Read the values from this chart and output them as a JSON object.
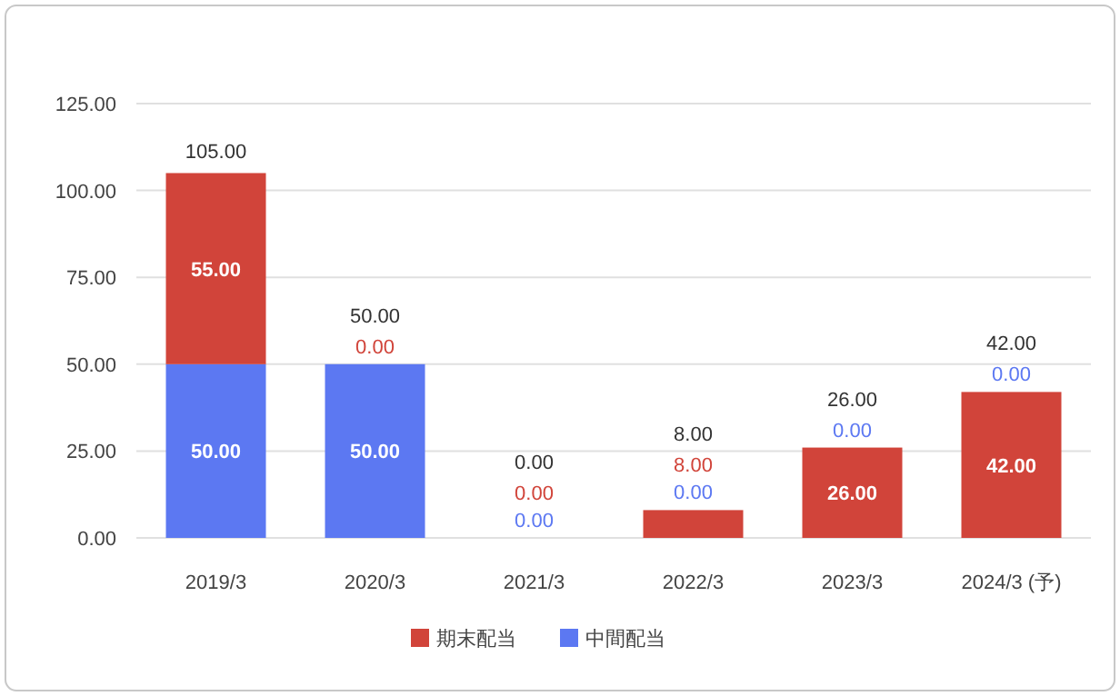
{
  "chart_data": {
    "type": "bar",
    "stacked": true,
    "categories": [
      "2019/3",
      "2020/3",
      "2021/3",
      "2022/3",
      "2023/3",
      "2024/3 (予)"
    ],
    "series": [
      {
        "name": "中間配当",
        "color": "#5c78f2",
        "values": [
          50,
          50,
          0,
          0,
          0,
          0
        ],
        "value_labels": [
          "50.00",
          "50.00",
          "0.00",
          "0.00",
          "0.00",
          "0.00"
        ]
      },
      {
        "name": "期末配当",
        "color": "#d1443a",
        "values": [
          55,
          0,
          0,
          8,
          26,
          42
        ],
        "value_labels": [
          "55.00",
          "0.00",
          "0.00",
          "8.00",
          "26.00",
          "42.00"
        ]
      }
    ],
    "totals": [
      "105.00",
      "50.00",
      "0.00",
      "8.00",
      "26.00",
      "42.00"
    ],
    "ylim": [
      0,
      125
    ],
    "yticks": [
      {
        "value": 0,
        "label": "0.00"
      },
      {
        "value": 25,
        "label": "25.00"
      },
      {
        "value": 50,
        "label": "50.00"
      },
      {
        "value": 75,
        "label": "75.00"
      },
      {
        "value": 100,
        "label": "100.00"
      },
      {
        "value": 125,
        "label": "125.00"
      }
    ],
    "grid": "y",
    "legend": "bottom"
  }
}
